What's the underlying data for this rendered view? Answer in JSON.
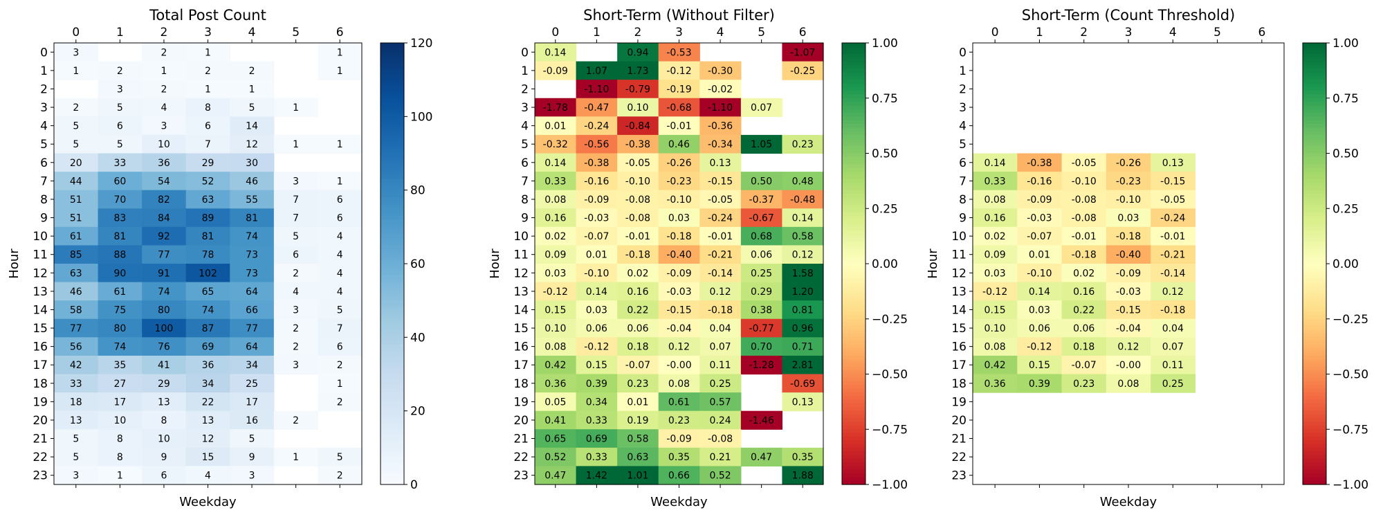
{
  "chart_data": [
    {
      "type": "heatmap",
      "title": "Total Post Count",
      "xlabel": "Weekday",
      "ylabel": "Hour",
      "x": [
        0,
        1,
        2,
        3,
        4,
        5,
        6
      ],
      "y": [
        0,
        1,
        2,
        3,
        4,
        5,
        6,
        7,
        8,
        9,
        10,
        11,
        12,
        13,
        14,
        15,
        16,
        17,
        18,
        19,
        20,
        21,
        22,
        23
      ],
      "x_axis_position": "top",
      "colormap": "Blues",
      "color_range": [
        0,
        120
      ],
      "colorbar_ticks": [
        "0",
        "20",
        "40",
        "60",
        "80",
        "100",
        "120"
      ],
      "values": [
        [
          3,
          null,
          2,
          1,
          null,
          null,
          1
        ],
        [
          1,
          2,
          1,
          2,
          2,
          null,
          1
        ],
        [
          null,
          3,
          2,
          1,
          1,
          null,
          null
        ],
        [
          2,
          5,
          4,
          8,
          5,
          1,
          null
        ],
        [
          5,
          6,
          3,
          6,
          14,
          null,
          null
        ],
        [
          5,
          5,
          10,
          7,
          12,
          1,
          1
        ],
        [
          20,
          33,
          36,
          29,
          30,
          null,
          null
        ],
        [
          44,
          60,
          54,
          52,
          46,
          3,
          1
        ],
        [
          51,
          70,
          82,
          63,
          55,
          7,
          6
        ],
        [
          51,
          83,
          84,
          89,
          81,
          7,
          6
        ],
        [
          61,
          81,
          92,
          81,
          74,
          5,
          4
        ],
        [
          85,
          88,
          77,
          78,
          73,
          6,
          4
        ],
        [
          63,
          90,
          91,
          102,
          73,
          2,
          4
        ],
        [
          46,
          61,
          74,
          65,
          64,
          4,
          4
        ],
        [
          58,
          75,
          80,
          74,
          66,
          3,
          5
        ],
        [
          77,
          80,
          100,
          87,
          77,
          2,
          7
        ],
        [
          56,
          74,
          76,
          69,
          64,
          2,
          6
        ],
        [
          42,
          35,
          41,
          36,
          34,
          3,
          2
        ],
        [
          33,
          27,
          29,
          34,
          25,
          null,
          1
        ],
        [
          18,
          17,
          13,
          22,
          17,
          null,
          2
        ],
        [
          13,
          10,
          8,
          13,
          16,
          2,
          null
        ],
        [
          5,
          8,
          10,
          12,
          5,
          null,
          null
        ],
        [
          5,
          8,
          9,
          15,
          9,
          1,
          5
        ],
        [
          3,
          1,
          6,
          4,
          3,
          null,
          2
        ]
      ]
    },
    {
      "type": "heatmap",
      "title": "Short-Term (Without Filter)",
      "xlabel": "Weekday",
      "ylabel": "Hour",
      "x": [
        0,
        1,
        2,
        3,
        4,
        5,
        6
      ],
      "y": [
        0,
        1,
        2,
        3,
        4,
        5,
        6,
        7,
        8,
        9,
        10,
        11,
        12,
        13,
        14,
        15,
        16,
        17,
        18,
        19,
        20,
        21,
        22,
        23
      ],
      "x_axis_position": "top",
      "colormap": "RdYlGn",
      "color_range": [
        -1,
        1
      ],
      "colorbar_ticks": [
        "−1.00",
        "−0.75",
        "−0.50",
        "−0.25",
        "0.00",
        "0.25",
        "0.50",
        "0.75",
        "1.00"
      ],
      "values": [
        [
          "0.14",
          null,
          "0.94",
          "-0.53",
          null,
          null,
          "-1.07"
        ],
        [
          "-0.09",
          "1.07",
          "1.73",
          "-0.12",
          "-0.30",
          null,
          "-0.25"
        ],
        [
          null,
          "-1.10",
          "-0.79",
          "-0.19",
          "-0.02",
          null,
          null
        ],
        [
          "-1.78",
          "-0.47",
          "0.10",
          "-0.68",
          "-1.10",
          "0.07",
          null
        ],
        [
          "0.01",
          "-0.24",
          "-0.84",
          "-0.01",
          "-0.36",
          null,
          null
        ],
        [
          "-0.32",
          "-0.56",
          "-0.38",
          "0.46",
          "-0.34",
          "1.05",
          "0.23"
        ],
        [
          "0.14",
          "-0.38",
          "-0.05",
          "-0.26",
          "0.13",
          null,
          null
        ],
        [
          "0.33",
          "-0.16",
          "-0.10",
          "-0.23",
          "-0.15",
          "0.50",
          "0.48"
        ],
        [
          "0.08",
          "-0.09",
          "-0.08",
          "-0.10",
          "-0.05",
          "-0.37",
          "-0.48"
        ],
        [
          "0.16",
          "-0.03",
          "-0.08",
          "0.03",
          "-0.24",
          "-0.67",
          "0.14"
        ],
        [
          "0.02",
          "-0.07",
          "-0.01",
          "-0.18",
          "-0.01",
          "0.68",
          "0.58"
        ],
        [
          "0.09",
          "0.01",
          "-0.18",
          "-0.40",
          "-0.21",
          "0.06",
          "0.12"
        ],
        [
          "0.03",
          "-0.10",
          "0.02",
          "-0.09",
          "-0.14",
          "0.25",
          "1.58"
        ],
        [
          "-0.12",
          "0.14",
          "0.16",
          "-0.03",
          "0.12",
          "0.29",
          "1.20"
        ],
        [
          "0.15",
          "0.03",
          "0.22",
          "-0.15",
          "-0.18",
          "0.38",
          "0.81"
        ],
        [
          "0.10",
          "0.06",
          "0.06",
          "-0.04",
          "0.04",
          "-0.77",
          "0.96"
        ],
        [
          "0.08",
          "-0.12",
          "0.18",
          "0.12",
          "0.07",
          "0.70",
          "0.71"
        ],
        [
          "0.42",
          "0.15",
          "-0.07",
          "-0.00",
          "0.11",
          "-1.28",
          "2.81"
        ],
        [
          "0.36",
          "0.39",
          "0.23",
          "0.08",
          "0.25",
          null,
          "-0.69"
        ],
        [
          "0.05",
          "0.34",
          "0.01",
          "0.61",
          "0.57",
          null,
          "0.13"
        ],
        [
          "0.41",
          "0.33",
          "0.19",
          "0.23",
          "0.24",
          "-1.46",
          null
        ],
        [
          "0.65",
          "0.69",
          "0.58",
          "-0.09",
          "-0.08",
          null,
          null
        ],
        [
          "0.52",
          "0.33",
          "0.63",
          "0.35",
          "0.21",
          "0.47",
          "0.35"
        ],
        [
          "0.47",
          "1.42",
          "1.01",
          "0.66",
          "0.52",
          null,
          "1.88"
        ]
      ]
    },
    {
      "type": "heatmap",
      "title": "Short-Term (Count Threshold)",
      "xlabel": "Weekday",
      "ylabel": "Hour",
      "x": [
        0,
        1,
        2,
        3,
        4,
        5,
        6
      ],
      "y": [
        0,
        1,
        2,
        3,
        4,
        5,
        6,
        7,
        8,
        9,
        10,
        11,
        12,
        13,
        14,
        15,
        16,
        17,
        18,
        19,
        20,
        21,
        22,
        23
      ],
      "x_axis_position": "top",
      "colormap": "RdYlGn",
      "color_range": [
        -1,
        1
      ],
      "colorbar_ticks": [
        "−1.00",
        "−0.75",
        "−0.50",
        "−0.25",
        "0.00",
        "0.25",
        "0.50",
        "0.75",
        "1.00"
      ],
      "values": [
        [
          null,
          null,
          null,
          null,
          null,
          null,
          null
        ],
        [
          null,
          null,
          null,
          null,
          null,
          null,
          null
        ],
        [
          null,
          null,
          null,
          null,
          null,
          null,
          null
        ],
        [
          null,
          null,
          null,
          null,
          null,
          null,
          null
        ],
        [
          null,
          null,
          null,
          null,
          null,
          null,
          null
        ],
        [
          null,
          null,
          null,
          null,
          null,
          null,
          null
        ],
        [
          "0.14",
          "-0.38",
          "-0.05",
          "-0.26",
          "0.13",
          null,
          null
        ],
        [
          "0.33",
          "-0.16",
          "-0.10",
          "-0.23",
          "-0.15",
          null,
          null
        ],
        [
          "0.08",
          "-0.09",
          "-0.08",
          "-0.10",
          "-0.05",
          null,
          null
        ],
        [
          "0.16",
          "-0.03",
          "-0.08",
          "0.03",
          "-0.24",
          null,
          null
        ],
        [
          "0.02",
          "-0.07",
          "-0.01",
          "-0.18",
          "-0.01",
          null,
          null
        ],
        [
          "0.09",
          "0.01",
          "-0.18",
          "-0.40",
          "-0.21",
          null,
          null
        ],
        [
          "0.03",
          "-0.10",
          "0.02",
          "-0.09",
          "-0.14",
          null,
          null
        ],
        [
          "-0.12",
          "0.14",
          "0.16",
          "-0.03",
          "0.12",
          null,
          null
        ],
        [
          "0.15",
          "0.03",
          "0.22",
          "-0.15",
          "-0.18",
          null,
          null
        ],
        [
          "0.10",
          "0.06",
          "0.06",
          "-0.04",
          "0.04",
          null,
          null
        ],
        [
          "0.08",
          "-0.12",
          "0.18",
          "0.12",
          "0.07",
          null,
          null
        ],
        [
          "0.42",
          "0.15",
          "-0.07",
          "-0.00",
          "0.11",
          null,
          null
        ],
        [
          "0.36",
          "0.39",
          "0.23",
          "0.08",
          "0.25",
          null,
          null
        ],
        [
          null,
          null,
          null,
          null,
          null,
          null,
          null
        ],
        [
          null,
          null,
          null,
          null,
          null,
          null,
          null
        ],
        [
          null,
          null,
          null,
          null,
          null,
          null,
          null
        ],
        [
          null,
          null,
          null,
          null,
          null,
          null,
          null
        ],
        [
          null,
          null,
          null,
          null,
          null,
          null,
          null
        ]
      ]
    }
  ]
}
